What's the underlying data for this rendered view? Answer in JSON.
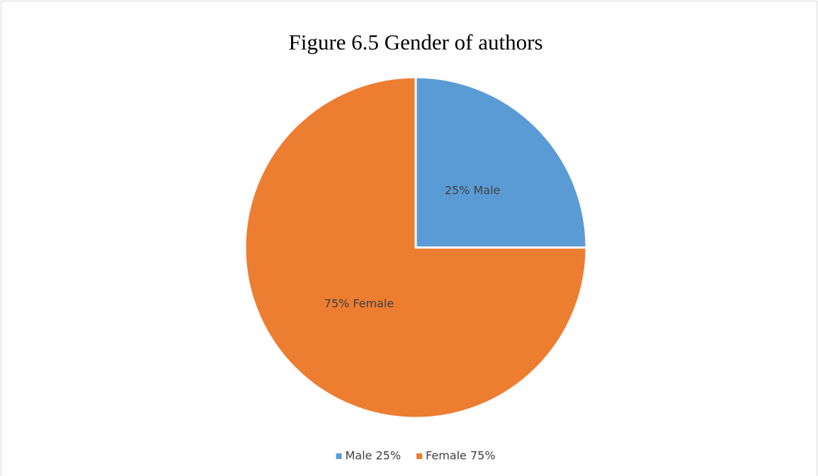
{
  "chart_data": {
    "type": "pie",
    "title": "Figure 6.5 Gender of authors",
    "categories": [
      "Male 25%",
      "Female 75%"
    ],
    "values": [
      25,
      75
    ],
    "value_labels": [
      "25% Male",
      "75% Female"
    ],
    "colors": [
      "#5b9bd5",
      "#ed7d31"
    ],
    "legend": "bottom"
  }
}
